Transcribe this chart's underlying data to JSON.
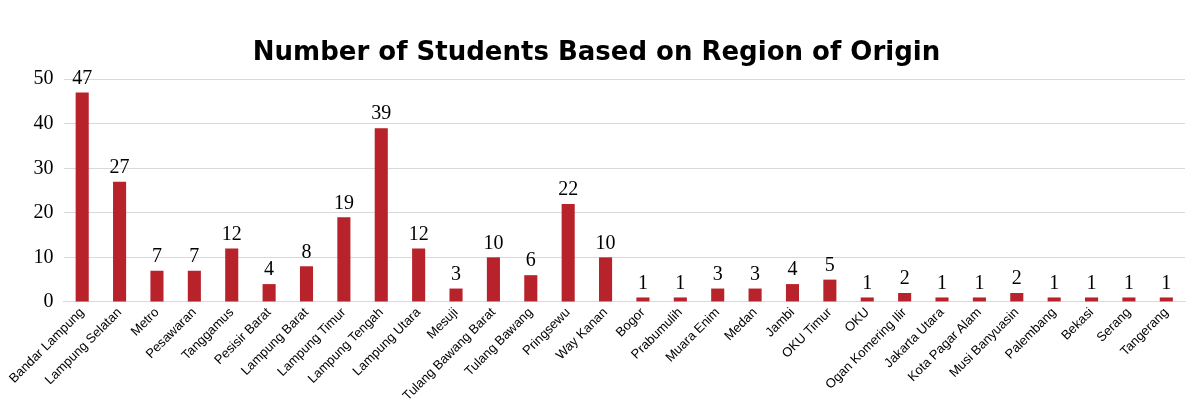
{
  "chart_data": {
    "type": "bar",
    "title": "Number of Students Based on Region of Origin",
    "categories": [
      "Bandar Lampung",
      "Lampung Selatan",
      "Metro",
      "Pesawaran",
      "Tanggamus",
      "Pesisir Barat",
      "Lampung Barat",
      "Lampung Timur",
      "Lampung Tengah",
      "Lampung Utara",
      "Mesuji",
      "Tulang Bawang Barat",
      "Tulang Bawang",
      "Pringsewu",
      "Way Kanan",
      "Bogor",
      "Prabumulih",
      "Muara Enim",
      "Medan",
      "Jambi",
      "OKU Timur",
      "OKU",
      "Ogan Komering Ilir",
      "Jakarta Utara",
      "Kota Pagar Alam",
      "Musi Banyuasin",
      "Palembang",
      "Bekasi",
      "Serang",
      "Tangerang"
    ],
    "values": [
      47,
      27,
      7,
      7,
      12,
      4,
      8,
      19,
      39,
      12,
      3,
      10,
      6,
      22,
      10,
      1,
      1,
      3,
      3,
      4,
      5,
      1,
      2,
      1,
      1,
      2,
      1,
      1,
      1,
      1
    ],
    "color": "#b8222a",
    "ylim": [
      0,
      50
    ],
    "yticks": [
      0,
      10,
      20,
      30,
      40,
      50
    ],
    "grid": "y",
    "data_labels": true
  }
}
